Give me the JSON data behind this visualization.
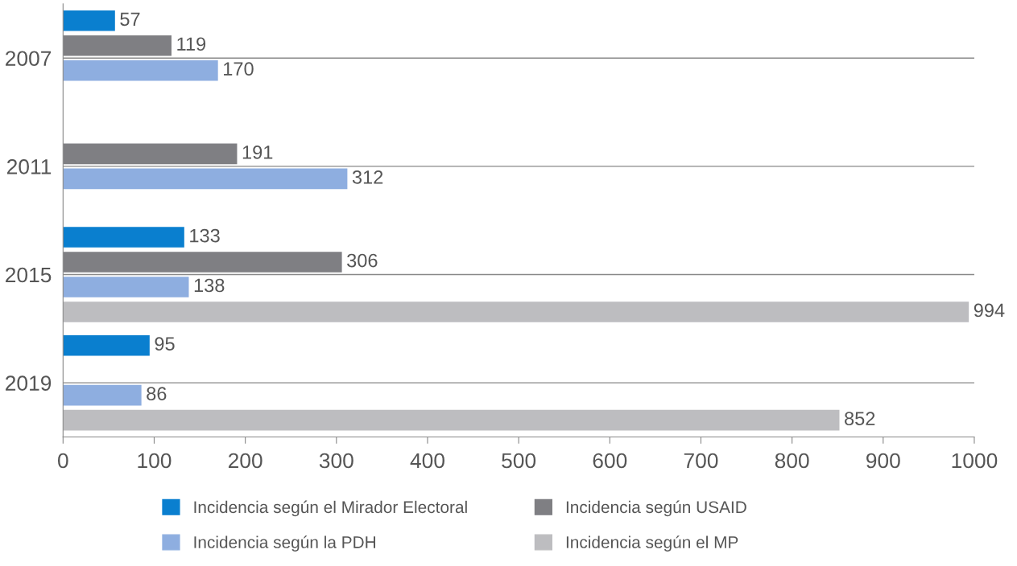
{
  "chart_data": {
    "type": "bar",
    "orientation": "horizontal",
    "categories": [
      "2007",
      "2011",
      "2015",
      "2019"
    ],
    "series": [
      {
        "name": "Incidencia según el Mirador Electoral",
        "color": "#0a7fcf",
        "values": [
          57,
          null,
          133,
          95
        ]
      },
      {
        "name": "Incidencia según USAID",
        "color": "#7f7f83",
        "values": [
          119,
          191,
          306,
          null
        ]
      },
      {
        "name": "Incidencia según la PDH",
        "color": "#8eaee0",
        "values": [
          170,
          312,
          138,
          86
        ]
      },
      {
        "name": "Incidencia según el MP",
        "color": "#bdbdc0",
        "values": [
          null,
          null,
          994,
          852
        ]
      }
    ],
    "xlim": [
      0,
      1000
    ],
    "xticks": [
      0,
      100,
      200,
      300,
      400,
      500,
      600,
      700,
      800,
      900,
      1000
    ],
    "grid": "y",
    "legend": "bottom",
    "data_labels": true
  }
}
